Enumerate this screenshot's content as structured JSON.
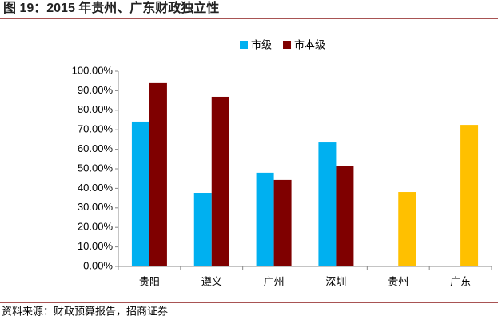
{
  "chart_data": {
    "type": "bar",
    "title": "图 19：2015 年贵州、广东财政独立性",
    "source": "资料来源：财政预算报告，招商证券",
    "categories": [
      "贵阳",
      "遵义",
      "广州",
      "深圳",
      "贵州",
      "广东"
    ],
    "series": [
      {
        "name": "市级",
        "color": "#00b0f0",
        "values": [
          74.2,
          37.7,
          48.0,
          63.5,
          null,
          null
        ]
      },
      {
        "name": "市本级",
        "color": "#7f0000",
        "colors": [
          "#7f0000",
          "#7f0000",
          "#7f0000",
          "#7f0000",
          "#ffc000",
          "#ffc000"
        ],
        "values": [
          93.9,
          86.9,
          44.3,
          51.6,
          38.1,
          72.5
        ]
      }
    ],
    "ylim": [
      0,
      100
    ],
    "yticks": [
      {
        "value": 0,
        "label": "0.00%"
      },
      {
        "value": 10,
        "label": "10.00%"
      },
      {
        "value": 20,
        "label": "20.00%"
      },
      {
        "value": 30,
        "label": "30.00%"
      },
      {
        "value": 40,
        "label": "40.00%"
      },
      {
        "value": 50,
        "label": "50.00%"
      },
      {
        "value": 60,
        "label": "60.00%"
      },
      {
        "value": 70,
        "label": "70.00%"
      },
      {
        "value": 80,
        "label": "80.00%"
      },
      {
        "value": 90,
        "label": "90.00%"
      },
      {
        "value": 100,
        "label": "100.00%"
      }
    ],
    "legend": "top"
  }
}
